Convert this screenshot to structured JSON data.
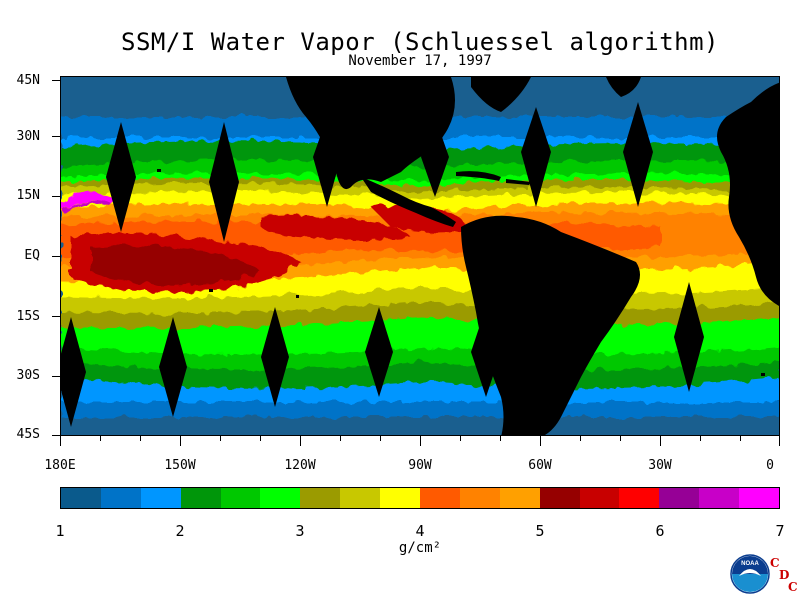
{
  "title": "SSM/I Water Vapor (Schluessel algorithm)",
  "date": "November 17, 1997",
  "map": {
    "lat_labels": [
      "45N",
      "30N",
      "15N",
      "EQ",
      "15S",
      "30S",
      "45S"
    ],
    "lon_labels": [
      "180E",
      "150W",
      "120W",
      "90W",
      "60W",
      "30W",
      "0"
    ],
    "colors": {
      "ocean_low": "#1a5f8f",
      "land": "#000000",
      "no_data": "#000000"
    }
  },
  "colorbar": {
    "units": "g/cm²",
    "labels": [
      "1",
      "2",
      "3",
      "4",
      "5",
      "6",
      "7"
    ],
    "colors": [
      "#0a5a8c",
      "#0073c8",
      "#0096ff",
      "#00960a",
      "#00c800",
      "#00ff00",
      "#9b9b00",
      "#c8c800",
      "#ffff00",
      "#ff5a00",
      "#ff8200",
      "#ffa000",
      "#960000",
      "#c80000",
      "#ff0000",
      "#960096",
      "#c800c8",
      "#ff00ff"
    ]
  },
  "logo": {
    "noaa_text": "NOAA",
    "cdc_letters": [
      "C",
      "D",
      "C"
    ]
  }
}
